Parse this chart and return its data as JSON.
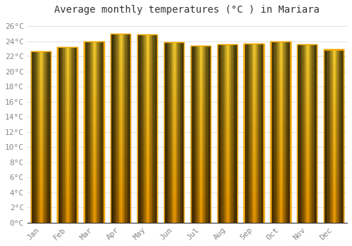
{
  "title": "Average monthly temperatures (°C ) in Mariara",
  "months": [
    "Jan",
    "Feb",
    "Mar",
    "Apr",
    "May",
    "Jun",
    "Jul",
    "Aug",
    "Sep",
    "Oct",
    "Nov",
    "Dec"
  ],
  "values": [
    22.7,
    23.2,
    24.0,
    25.0,
    24.9,
    23.9,
    23.4,
    23.6,
    23.7,
    24.0,
    23.6,
    22.9
  ],
  "ylim": [
    0,
    27
  ],
  "ytick_values": [
    0,
    2,
    4,
    6,
    8,
    10,
    12,
    14,
    16,
    18,
    20,
    22,
    24,
    26
  ],
  "bar_color_center": "#FFD050",
  "bar_color_edge": "#F5A800",
  "bar_color_bottom": "#F5A000",
  "background_color": "#FFFFFF",
  "grid_color": "#E0E0E0",
  "title_fontsize": 10,
  "tick_fontsize": 8,
  "title_font": "monospace",
  "tick_font": "monospace",
  "tick_color": "#888888",
  "bar_width": 0.75
}
